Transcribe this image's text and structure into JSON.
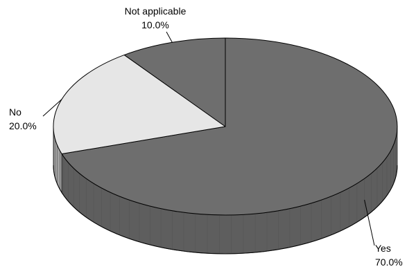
{
  "chart_data": {
    "type": "pie",
    "variant": "3d",
    "slices": [
      {
        "label": "Yes",
        "percent_label": "70.0%",
        "value": 70.0,
        "color": "#6e6e6e"
      },
      {
        "label": "No",
        "percent_label": "20.0%",
        "value": 20.0,
        "color": "#e6e6e6"
      },
      {
        "label": "Not applicable",
        "percent_label": "10.0%",
        "value": 10.0,
        "color": "#6e6e6e"
      }
    ],
    "title": "",
    "legend": false,
    "label_style": "outside with leader lines"
  }
}
